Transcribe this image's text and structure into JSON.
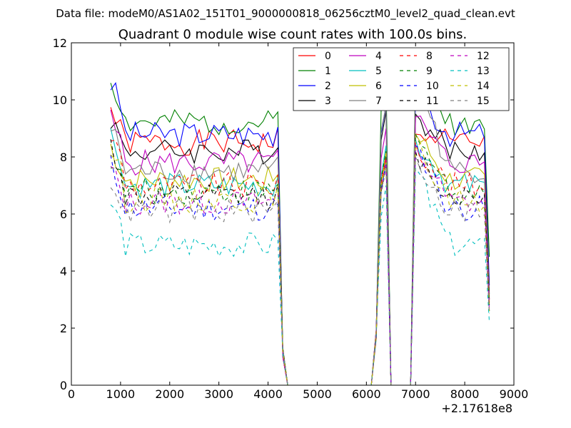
{
  "chart_data": {
    "type": "line",
    "suptitle": "Data file: modeM0/AS1A02_151T01_9000000818_06256cztM0_level2_quad_clean.evt",
    "title": "Quadrant 0 module wise count rates with 100.0s bins.",
    "xlabel": "",
    "ylabel": "",
    "x_offset_label": "+2.17618e8",
    "xlim": [
      0,
      9000
    ],
    "ylim": [
      0,
      12
    ],
    "x_ticks": [
      0,
      1000,
      2000,
      3000,
      4000,
      5000,
      6000,
      7000,
      8000,
      9000
    ],
    "y_ticks": [
      0,
      2,
      4,
      6,
      8,
      10,
      12
    ],
    "x_tick_labels": [
      "0",
      "1000",
      "2000",
      "3000",
      "4000",
      "5000",
      "6000",
      "7000",
      "8000",
      "9000"
    ],
    "y_tick_labels": [
      "0",
      "2",
      "4",
      "6",
      "8",
      "10",
      "12"
    ],
    "grid": false,
    "legend_position": "top-right",
    "legend_columns": 4,
    "x": [
      800,
      900,
      1000,
      1100,
      1200,
      1300,
      1400,
      1500,
      1600,
      1700,
      1800,
      1900,
      2000,
      2100,
      2200,
      2300,
      2400,
      2500,
      2600,
      2700,
      2800,
      2900,
      3000,
      3100,
      3200,
      3300,
      3400,
      3500,
      3600,
      3700,
      3800,
      3900,
      4000,
      4100,
      4200,
      4300,
      4400,
      4500,
      4600,
      4700,
      4800,
      4900,
      5000,
      5100,
      5200,
      5300,
      5400,
      5500,
      5600,
      5700,
      5800,
      5900,
      6000,
      6100,
      6200,
      6300,
      6400,
      6500,
      6600,
      6700,
      6800,
      6900,
      7000,
      7100,
      7200,
      7300,
      7400,
      7500,
      7600,
      7700,
      7800,
      7900,
      8000,
      8100,
      8200,
      8300,
      8400,
      8500
    ],
    "series": [
      {
        "name": "0",
        "color": "#ff0000",
        "dash": "solid",
        "level": 8.5,
        "peak1": 8.0,
        "peak2": 8.8,
        "end": 3.0
      },
      {
        "name": "1",
        "color": "#008000",
        "dash": "solid",
        "level": 9.2,
        "peak1": 10.6,
        "peak2": 11.2,
        "end": 4.5
      },
      {
        "name": "2",
        "color": "#0000ff",
        "dash": "solid",
        "level": 8.8,
        "peak1": 9.8,
        "peak2": 10.2,
        "end": 3.5
      },
      {
        "name": "3",
        "color": "#000000",
        "dash": "solid",
        "level": 8.2,
        "peak1": 9.6,
        "peak2": 9.5,
        "end": 3.2
      },
      {
        "name": "4",
        "color": "#bf00bf",
        "dash": "solid",
        "level": 7.8,
        "peak1": 9.0,
        "peak2": 9.4,
        "end": 3.0
      },
      {
        "name": "5",
        "color": "#00bfbf",
        "dash": "solid",
        "level": 7.0,
        "peak1": 8.4,
        "peak2": 8.6,
        "end": 2.8
      },
      {
        "name": "6",
        "color": "#bfbf00",
        "dash": "solid",
        "level": 7.2,
        "peak1": 8.2,
        "peak2": 8.8,
        "end": 2.9
      },
      {
        "name": "7",
        "color": "#808080",
        "dash": "solid",
        "level": 7.5,
        "peak1": 9.8,
        "peak2": 11.0,
        "end": 3.0
      },
      {
        "name": "8",
        "color": "#ff0000",
        "dash": "dashed",
        "level": 7.0,
        "peak1": 8.0,
        "peak2": 8.5,
        "end": 2.8
      },
      {
        "name": "9",
        "color": "#008000",
        "dash": "dashed",
        "level": 6.8,
        "peak1": 8.2,
        "peak2": 8.8,
        "end": 2.9
      },
      {
        "name": "10",
        "color": "#0000ff",
        "dash": "dashed",
        "level": 6.2,
        "peak1": 7.8,
        "peak2": 8.4,
        "end": 2.5
      },
      {
        "name": "11",
        "color": "#000000",
        "dash": "dashed",
        "level": 6.6,
        "peak1": 7.8,
        "peak2": 8.2,
        "end": 2.6
      },
      {
        "name": "12",
        "color": "#bf00bf",
        "dash": "dashed",
        "level": 6.4,
        "peak1": 7.9,
        "peak2": 8.4,
        "end": 2.6
      },
      {
        "name": "13",
        "color": "#00bfbf",
        "dash": "dashed",
        "level": 4.9,
        "peak1": 7.0,
        "peak2": 7.6,
        "end": 2.2
      },
      {
        "name": "14",
        "color": "#bfbf00",
        "dash": "dashed",
        "level": 6.5,
        "peak1": 7.8,
        "peak2": 8.3,
        "end": 2.6
      },
      {
        "name": "15",
        "color": "#808080",
        "dash": "dashed",
        "level": 6.1,
        "peak1": 7.6,
        "peak2": 8.0,
        "end": 2.5
      }
    ]
  }
}
